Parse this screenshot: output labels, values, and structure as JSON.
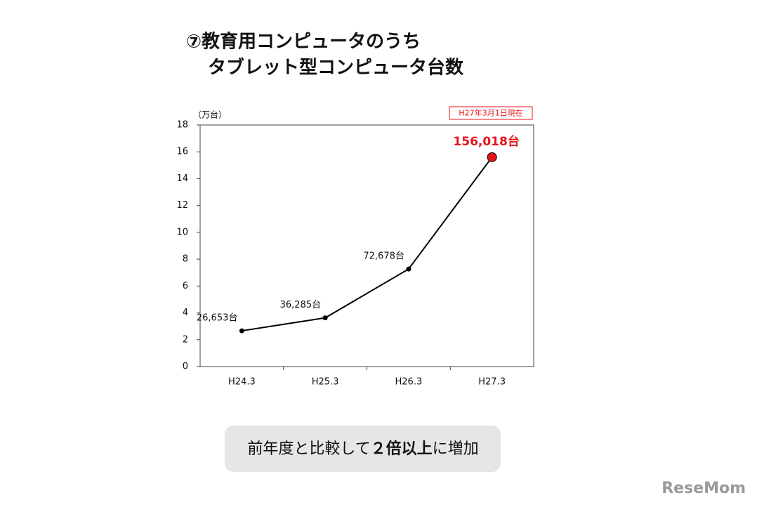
{
  "chart_data": {
    "type": "line",
    "title": [
      "⑦教育用コンピュータのうち",
      "タブレット型コンピュータ台数"
    ],
    "y_label": "（万台）",
    "annotation": "H27年3月1日現在",
    "categories": [
      "H24.3",
      "H25.3",
      "H26.3",
      "H27.3"
    ],
    "values": [
      2.6653,
      3.6285,
      7.2678,
      15.6018
    ],
    "value_labels": [
      "26,653台",
      "36,285台",
      "72,678台",
      "156,018台"
    ],
    "color": "#000000",
    "point_colors": [
      "#000000",
      "#000000",
      "#000000",
      "#e8141b"
    ],
    "ylim": [
      0,
      18
    ],
    "yticks": [
      0,
      2,
      4,
      6,
      8,
      10,
      12,
      14,
      16,
      18
    ],
    "grid": false
  },
  "callout": [
    "前年度と比較して",
    "２倍以上",
    "に増加"
  ],
  "logo": "ReseMom"
}
